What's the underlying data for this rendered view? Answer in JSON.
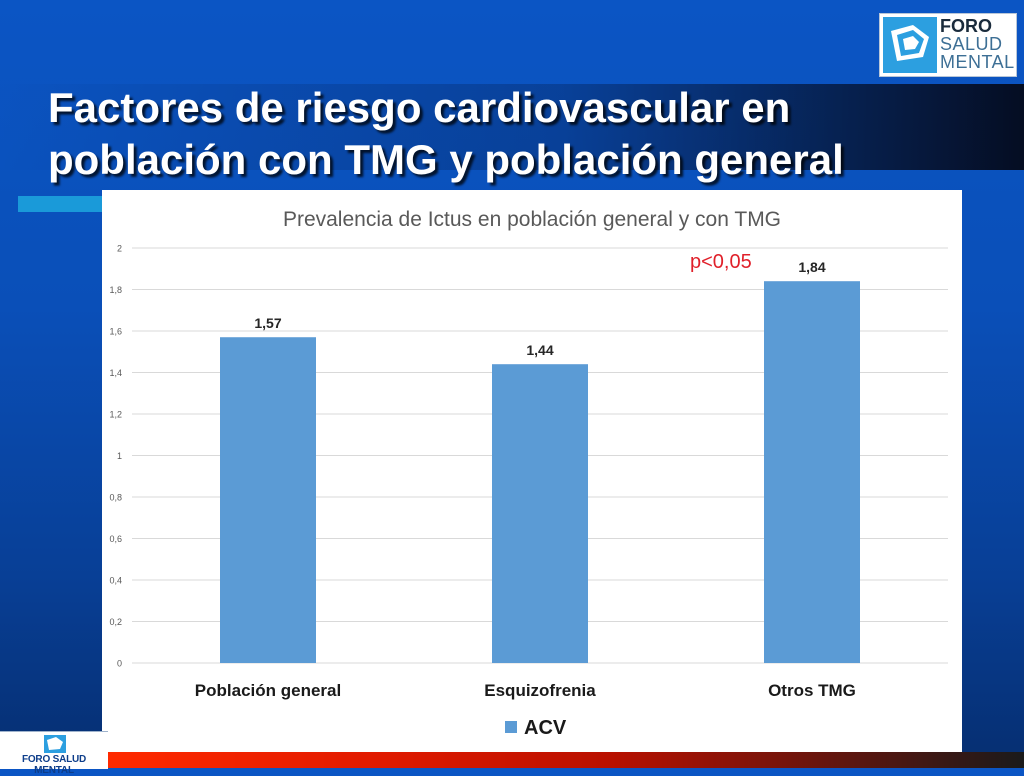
{
  "slide": {
    "title_line1": "Factores de riesgo cardiovascular en",
    "title_line2": "población con TMG y población general"
  },
  "logo": {
    "line1": "FORO",
    "line2": "SALUD",
    "line3": "MENTAL",
    "icon": "foro-salud-mental-logo"
  },
  "footer": {
    "logo_text": "FORO SALUD MENTAL"
  },
  "colors": {
    "bar": "#5b9bd5",
    "annotation": "#e0202a",
    "title": "#595959",
    "gridline": "#d9d9d9"
  },
  "chart_data": {
    "type": "bar",
    "title": "Prevalencia de Ictus en población general y con TMG",
    "categories": [
      "Población general",
      "Esquizofrenia",
      "Otros TMG"
    ],
    "series": [
      {
        "name": "ACV",
        "values": [
          1.57,
          1.44,
          1.84
        ]
      }
    ],
    "data_labels": [
      "1,57",
      "1,44",
      "1,84"
    ],
    "y_ticks": [
      "0",
      "0,2",
      "0,4",
      "0,6",
      "0,8",
      "1",
      "1,2",
      "1,4",
      "1,6",
      "1,8",
      "2"
    ],
    "ylim": [
      0,
      2
    ],
    "annotation": "p<0,05",
    "legend_position": "bottom",
    "grid": true
  }
}
